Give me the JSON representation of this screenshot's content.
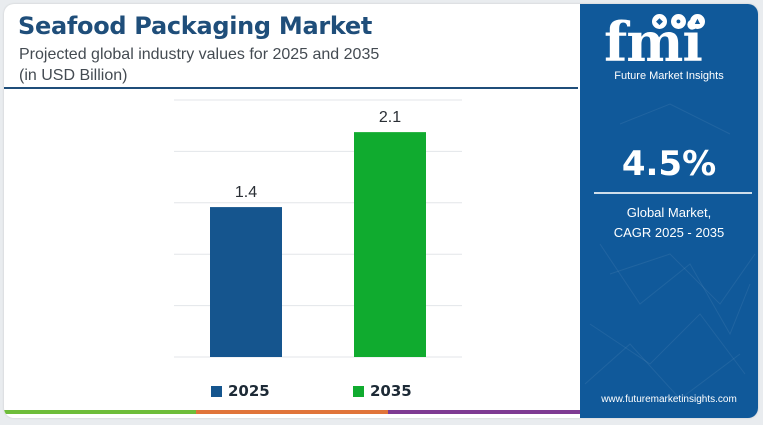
{
  "header": {
    "title": "Seafood Packaging Market",
    "subtitle_line1": "Projected global industry values for 2025 and 2035",
    "subtitle_line2": "(in USD Billion)"
  },
  "chart_data": {
    "type": "bar",
    "categories": [
      "2025",
      "2035"
    ],
    "values": [
      1.4,
      2.1
    ],
    "data_labels": [
      "1.4",
      "2.1"
    ],
    "colors": [
      "#15558e",
      "#10ab2f"
    ],
    "ylim": [
      0,
      2.4
    ],
    "grid": true,
    "legend": "bottom-center",
    "legend_entries": [
      "2025",
      "2035"
    ]
  },
  "bottom_strip_colors": [
    "#6ebd3a",
    "#e0743a",
    "#7e3a92"
  ],
  "side_panel": {
    "logo_text": "fmi",
    "logo_tagline": "Future Market Insights",
    "cagr_value": "4.5%",
    "cagr_caption_line1": "Global Market,",
    "cagr_caption_line2": "CAGR 2025 - 2035",
    "website": "www.futuremarketinsights.com",
    "background": "#10599a"
  }
}
